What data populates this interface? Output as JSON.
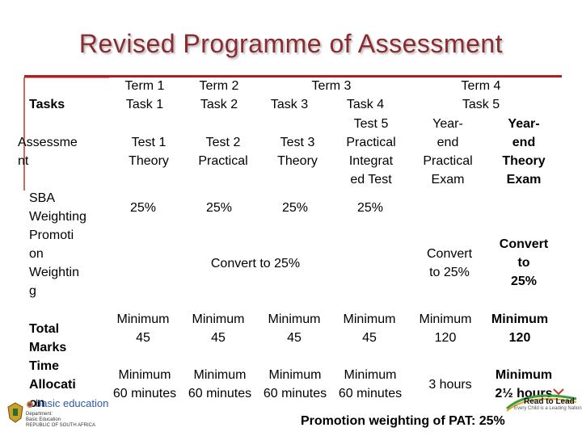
{
  "title": "Revised Programme of Assessment",
  "header": {
    "tasks": "Tasks",
    "t1": "Term 1\nTask 1",
    "t2": "Term 2\nTask 2",
    "term3": "Term 3",
    "t3": "Task 3",
    "t4": "Task 4",
    "term4": "Term 4",
    "t5": "Task 5"
  },
  "rows": {
    "assessment": {
      "label": "Assessme\nnt",
      "c1": "Test 1\nTheory",
      "c2": "Test 2\nPractical",
      "c3": "Test 3\nTheory",
      "c4": "Test 5\nPractical\nIntegrat\ned Test",
      "c5": "Year-\nend\nPractical\nExam",
      "c6": "Year-\nend\nTheory\nExam"
    },
    "sba": {
      "label": "SBA\nWeighting",
      "c1": "25%",
      "c2": "25%",
      "c3": "25%",
      "c4": "25%"
    },
    "promotion": {
      "label": "Promoti\non\nWeightin\ng",
      "c_span": "Convert to 25%",
      "c5": "Convert\nto 25%",
      "c6": "Convert\nto\n25%"
    },
    "total_marks": {
      "label": "Total\nMarks",
      "c1": "Minimum\n45",
      "c2": "Minimum\n45",
      "c3": "Minimum\n45",
      "c4": "Minimum\n45",
      "c5": "Minimum\n120",
      "c6": "Minimum\n120"
    },
    "time": {
      "label": "Time\nAllocati\non",
      "c1": "Minimum\n60 minutes",
      "c2": "Minimum\n60 minutes",
      "c3": "Minimum\n60 minutes",
      "c4": "Minimum\n60 minutes",
      "c5": "3 hours",
      "c6": "Minimum\n2½ hours"
    }
  },
  "footer": {
    "promotion_note": "Promotion weighting of PAT: 25%",
    "logo_text": "basic education",
    "logo_sub": "Department:\nBasic Education\nREPUBLIC OF SOUTH AFRICA",
    "brand_text": "Read to Lead",
    "brand_tag": "Every Child is a Leading Nation"
  },
  "colors": {
    "title": "#8c2a30",
    "rule": "#b01e24",
    "label_border": "#c0392b"
  }
}
